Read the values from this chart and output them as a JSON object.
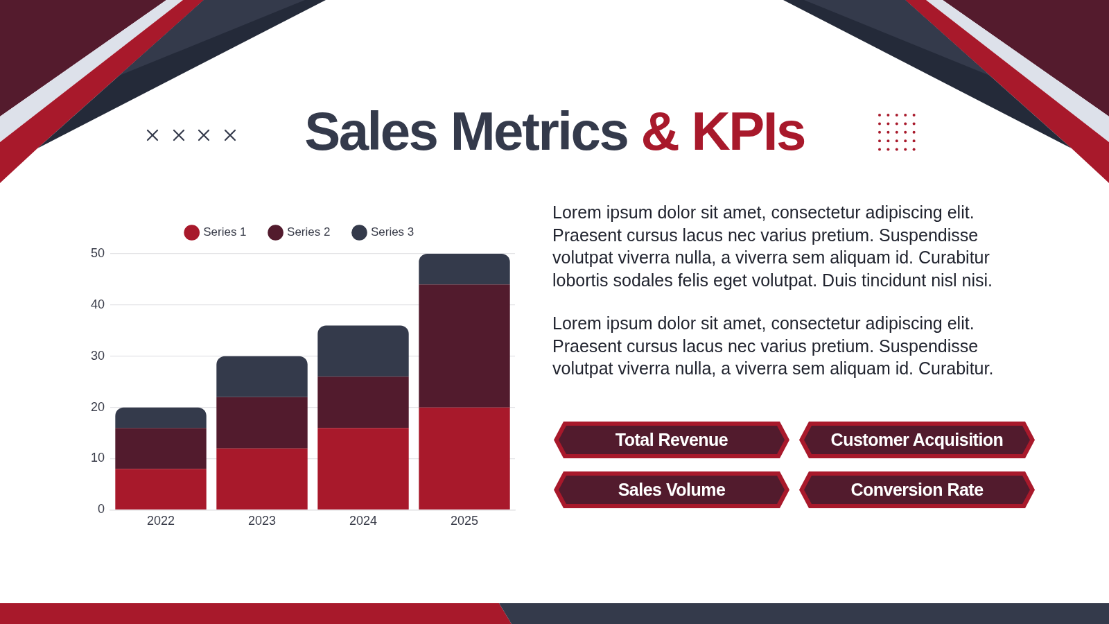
{
  "chart_data": {
    "type": "bar",
    "title": "Sales Metrics & KPIs",
    "categories": [
      "2022",
      "2023",
      "2024",
      "2025"
    ],
    "series": [
      {
        "name": "Series 1",
        "color": "#a8192b",
        "values": [
          8,
          12,
          16,
          20
        ]
      },
      {
        "name": "Series 2",
        "color": "#521b2d",
        "values": [
          8,
          10,
          10,
          24
        ]
      },
      {
        "name": "Series 3",
        "color": "#343a4b",
        "values": [
          4,
          8,
          10,
          6
        ]
      }
    ],
    "stacked": true,
    "ylim": [
      0,
      50
    ],
    "yticks": [
      0,
      10,
      20,
      30,
      40,
      50
    ],
    "grid": "y",
    "legend": "top",
    "annotations": [
      "Lorem ipsum dolor sit amet, consectetur adipiscing elit. Praesent cursus lacus nec varius pretium. Suspendisse volutpat viverra nulla, a viverra sem aliquam id. Curabitur lobortis sodales felis eget volutpat. Duis tincidunt nisl nisi.",
      "Lorem ipsum dolor sit amet, consectetur adipiscing elit. Praesent cursus lacus nec varius pretium. Suspendisse volutpat viverra nulla, a viverra sem aliquam id. Curabitur.",
      "Total Revenue",
      "Customer Acquisition",
      "Sales Volume",
      "Conversion Rate"
    ]
  }
}
